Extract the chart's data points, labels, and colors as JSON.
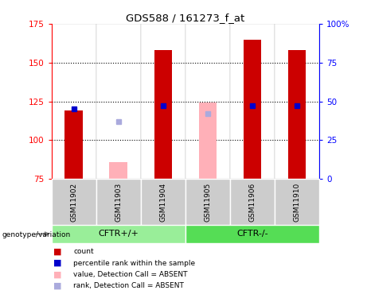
{
  "title": "GDS588 / 161273_f_at",
  "samples": [
    "GSM11902",
    "GSM11903",
    "GSM11904",
    "GSM11905",
    "GSM11906",
    "GSM11910"
  ],
  "group_labels": [
    "CFTR+/+",
    "CFTR-/-"
  ],
  "ylim_left": [
    75,
    175
  ],
  "ylim_right": [
    0,
    100
  ],
  "yticks_left": [
    75,
    100,
    125,
    150,
    175
  ],
  "yticks_right": [
    0,
    25,
    50,
    75,
    100
  ],
  "ytick_labels_right": [
    "0",
    "25",
    "50",
    "75",
    "100%"
  ],
  "red_bars": {
    "GSM11902": [
      75,
      119
    ],
    "GSM11903": null,
    "GSM11904": [
      75,
      158
    ],
    "GSM11905": null,
    "GSM11906": [
      75,
      165
    ],
    "GSM11910": [
      75,
      158
    ]
  },
  "pink_bars": {
    "GSM11902": null,
    "GSM11903": [
      75,
      86
    ],
    "GSM11904": null,
    "GSM11905": [
      75,
      124
    ],
    "GSM11906": null,
    "GSM11910": null
  },
  "blue_squares": {
    "GSM11902": 120,
    "GSM11903": null,
    "GSM11904": 122,
    "GSM11905": null,
    "GSM11906": 122,
    "GSM11910": 122
  },
  "lavender_squares": {
    "GSM11902": null,
    "GSM11903": 112,
    "GSM11904": null,
    "GSM11905": 117,
    "GSM11906": null,
    "GSM11910": null
  },
  "red_color": "#CC0000",
  "pink_color": "#FFB0B8",
  "blue_color": "#0000CC",
  "lavender_color": "#AAAADD",
  "bg_sample": "#CCCCCC",
  "bg_group1": "#99EE99",
  "bg_group2": "#55DD55",
  "bar_width": 0.4,
  "legend_items": [
    [
      "#CC0000",
      "count"
    ],
    [
      "#0000CC",
      "percentile rank within the sample"
    ],
    [
      "#FFB0B8",
      "value, Detection Call = ABSENT"
    ],
    [
      "#AAAADD",
      "rank, Detection Call = ABSENT"
    ]
  ]
}
